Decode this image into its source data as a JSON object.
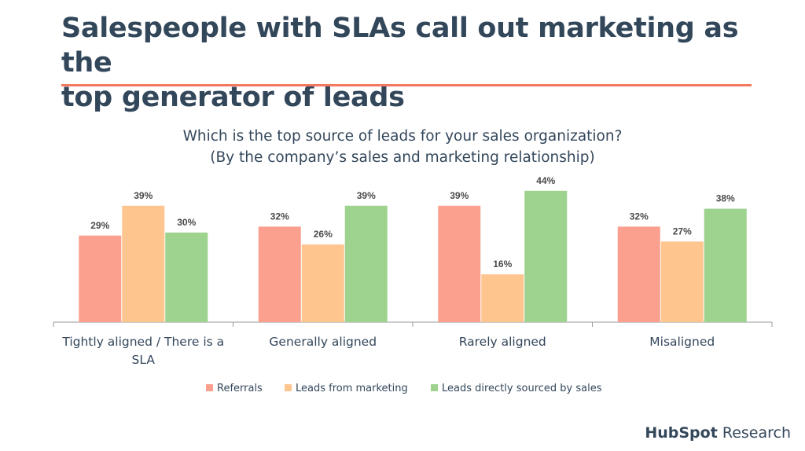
{
  "slide": {
    "title_line1": "Salespeople with SLAs call out marketing as the",
    "title_line2": "top generator of leads"
  },
  "brand": {
    "name": "HubSpot",
    "suffix": "Research"
  },
  "colors": {
    "title": "#33475b",
    "accent_rule": "#f2795e",
    "referrals": "#fba08e",
    "marketing": "#fec58f",
    "sales": "#9dd38e"
  },
  "chart_data": {
    "type": "bar",
    "title_line1": "Which is the top source of leads for your sales organization?",
    "title_line2": "(By the company’s sales and marketing relationship)",
    "categories": [
      [
        "Tightly aligned / There is a",
        "SLA"
      ],
      [
        "Generally aligned"
      ],
      [
        "Rarely aligned"
      ],
      [
        "Misaligned"
      ]
    ],
    "series": [
      {
        "name": "Referrals",
        "color": "#fba08e",
        "values": [
          29,
          32,
          39,
          32
        ]
      },
      {
        "name": "Leads from marketing",
        "color": "#fec58f",
        "values": [
          39,
          26,
          16,
          27
        ]
      },
      {
        "name": "Leads directly sourced by sales",
        "color": "#9dd38e",
        "values": [
          30,
          39,
          44,
          38
        ]
      }
    ],
    "value_suffix": "%",
    "ylim": [
      0,
      50
    ],
    "grid": false,
    "legend_position": "bottom"
  }
}
